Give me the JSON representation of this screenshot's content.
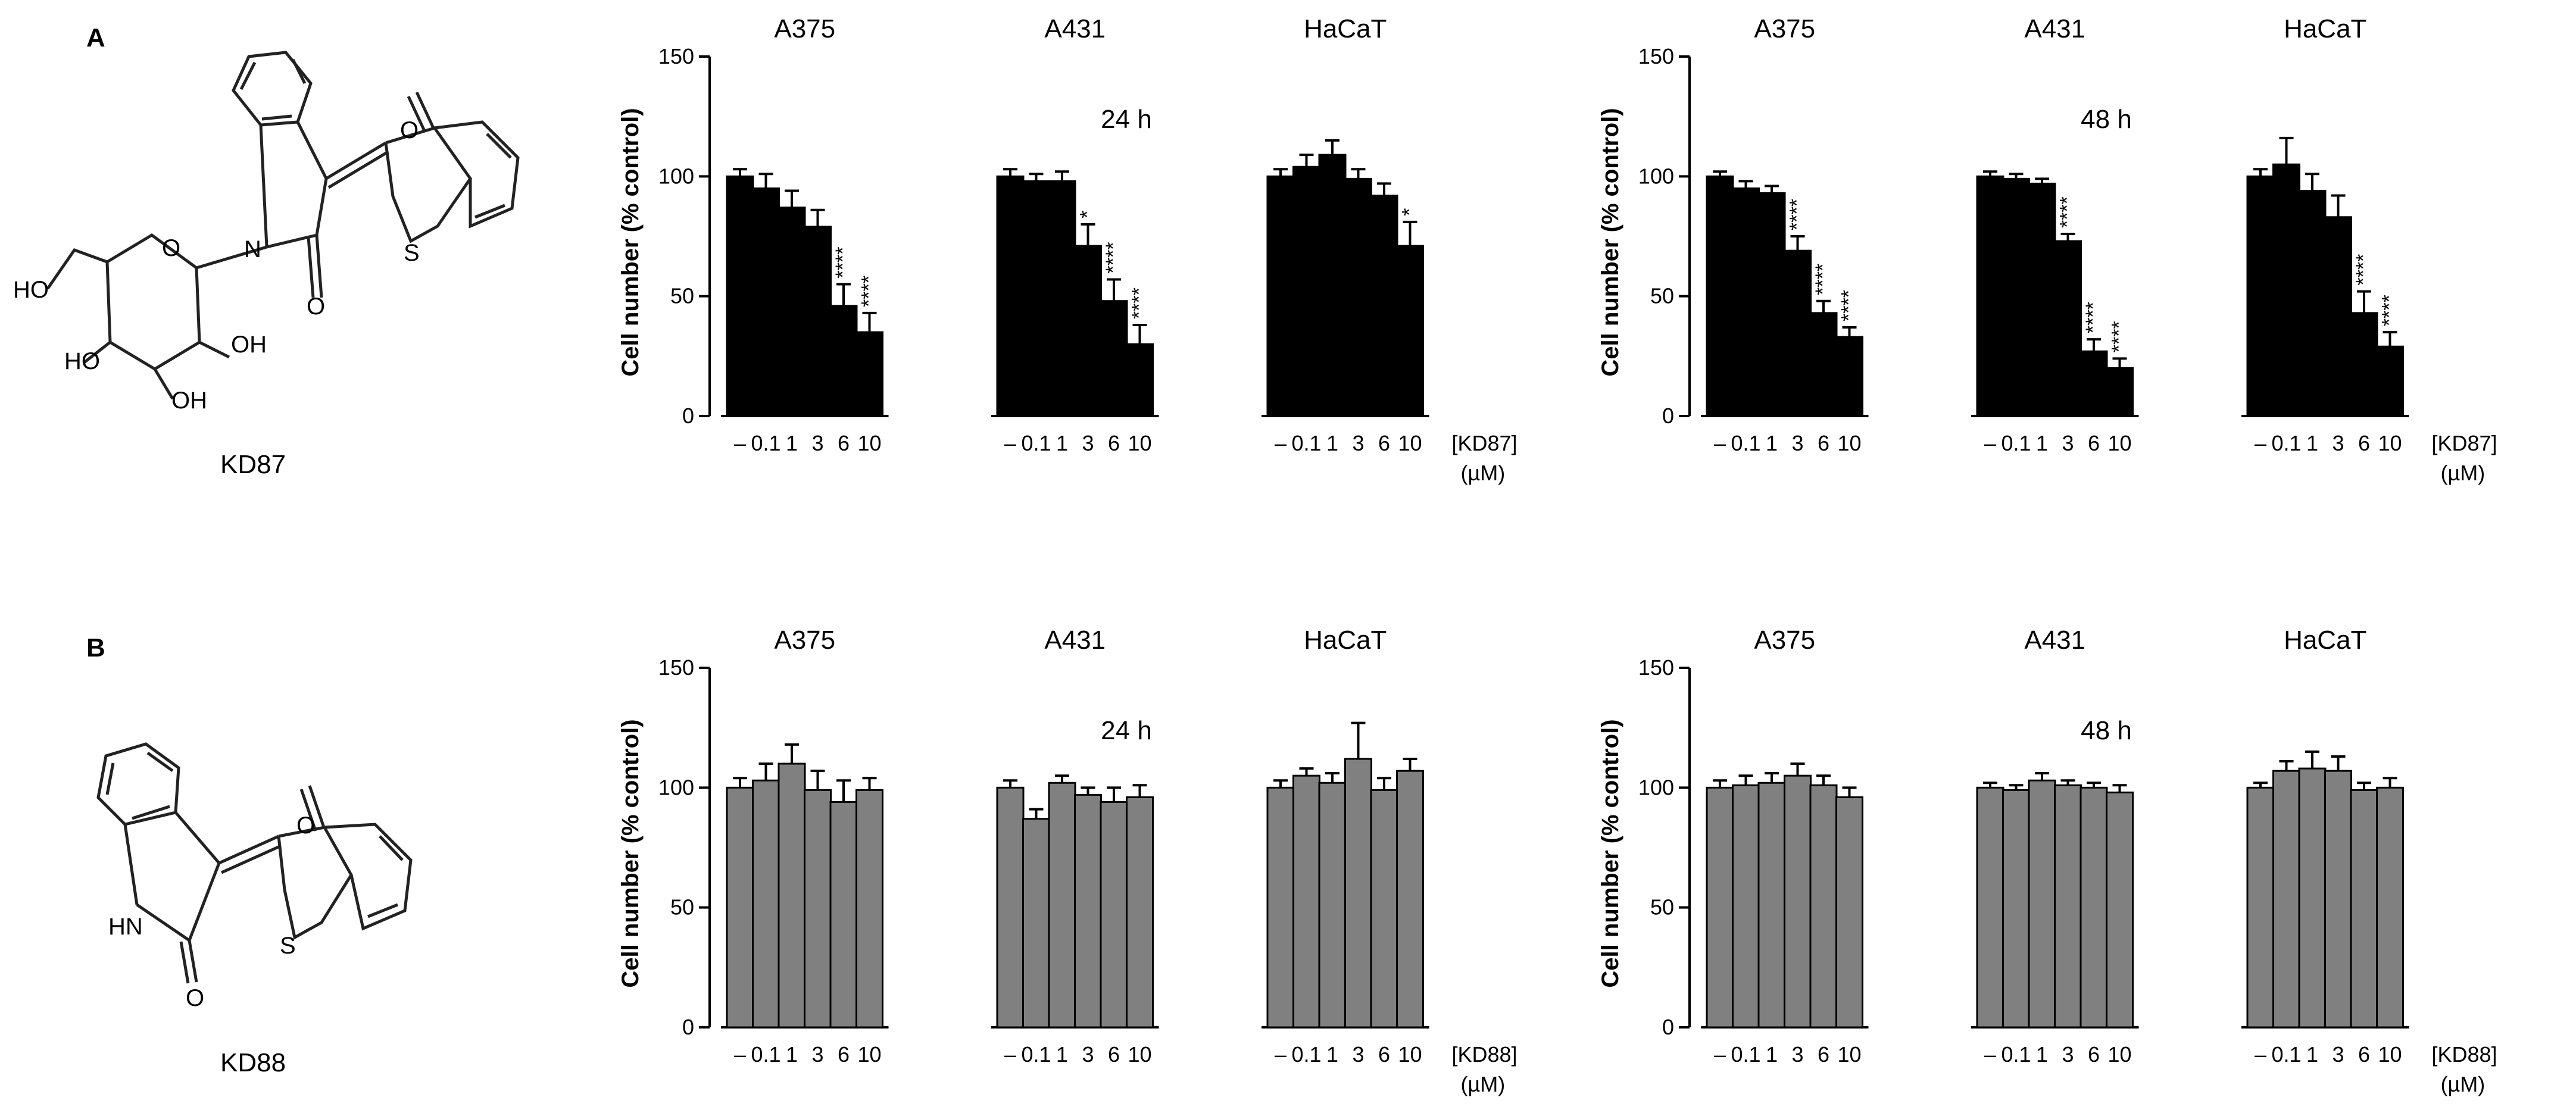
{
  "panels": [
    {
      "letter": "A",
      "compound": "KD87"
    },
    {
      "letter": "B",
      "compound": "KD88"
    }
  ],
  "atoms": {
    "kd87": {
      "ho": "HO",
      "ho2": "HO",
      "oh": "OH",
      "oh2": "OH",
      "o_ring": "O",
      "n": "N",
      "o_carbonyl": "O",
      "o_top": "O",
      "s": "S"
    },
    "kd88": {
      "hn": "HN",
      "o_carbonyl": "O",
      "o_top": "O",
      "s": "S"
    }
  },
  "colors": {
    "kd87_bar": "#000000",
    "kd88_bar": "#808080",
    "edge": "#000000"
  },
  "chart_data": [
    {
      "type": "bar",
      "id": "A-24h",
      "time": "24 h",
      "ylabel": "Cell number (% control)",
      "ylim": [
        0,
        150
      ],
      "yticks": [
        0,
        50,
        100,
        150
      ],
      "groups": [
        "A375",
        "A431",
        "HaCaT"
      ],
      "categories": [
        "–",
        "0.1",
        "1",
        "3",
        "6",
        "10"
      ],
      "compound_label": "[KD87]",
      "unit_label": "(µM)",
      "series": [
        {
          "name": "A375",
          "values": [
            100,
            95,
            87,
            79,
            46,
            35
          ],
          "errors": [
            3,
            6,
            7,
            7,
            9,
            8
          ],
          "sig": [
            "",
            "",
            "",
            "",
            "****",
            "****"
          ]
        },
        {
          "name": "A431",
          "values": [
            100,
            98,
            98,
            71,
            48,
            30
          ],
          "errors": [
            3,
            3,
            4,
            9,
            9,
            8
          ],
          "sig": [
            "",
            "",
            "",
            "*",
            "****",
            "****"
          ]
        },
        {
          "name": "HaCaT",
          "values": [
            100,
            104,
            109,
            99,
            92,
            71
          ],
          "errors": [
            3,
            5,
            6,
            4,
            5,
            10
          ],
          "sig": [
            "",
            "",
            "",
            "",
            "",
            "*"
          ]
        }
      ]
    },
    {
      "type": "bar",
      "id": "A-48h",
      "time": "48 h",
      "ylabel": "Cell number (% control)",
      "ylim": [
        0,
        150
      ],
      "yticks": [
        0,
        50,
        100,
        150
      ],
      "groups": [
        "A375",
        "A431",
        "HaCaT"
      ],
      "categories": [
        "–",
        "0.1",
        "1",
        "3",
        "6",
        "10"
      ],
      "compound_label": "[KD87]",
      "unit_label": "(µM)",
      "series": [
        {
          "name": "A375",
          "values": [
            100,
            95,
            93,
            69,
            43,
            33
          ],
          "errors": [
            2,
            3,
            3,
            6,
            5,
            4
          ],
          "sig": [
            "",
            "",
            "",
            "****",
            "****",
            "****"
          ]
        },
        {
          "name": "A431",
          "values": [
            100,
            99,
            97,
            73,
            27,
            20
          ],
          "errors": [
            2,
            2,
            2,
            3,
            5,
            4
          ],
          "sig": [
            "",
            "",
            "",
            "****",
            "****",
            "****"
          ]
        },
        {
          "name": "HaCaT",
          "values": [
            100,
            105,
            94,
            83,
            43,
            29
          ],
          "errors": [
            3,
            11,
            7,
            9,
            9,
            6
          ],
          "sig": [
            "",
            "",
            "",
            "",
            "****",
            "****"
          ]
        }
      ]
    },
    {
      "type": "bar",
      "id": "B-24h",
      "time": "24 h",
      "ylabel": "Cell number (% control)",
      "ylim": [
        0,
        150
      ],
      "yticks": [
        0,
        50,
        100,
        150
      ],
      "groups": [
        "A375",
        "A431",
        "HaCaT"
      ],
      "categories": [
        "–",
        "0.1",
        "1",
        "3",
        "6",
        "10"
      ],
      "compound_label": "[KD88]",
      "unit_label": "(µM)",
      "series": [
        {
          "name": "A375",
          "values": [
            100,
            103,
            110,
            99,
            94,
            99
          ],
          "errors": [
            4,
            7,
            8,
            8,
            9,
            5
          ],
          "sig": [
            "",
            "",
            "",
            "",
            "",
            ""
          ]
        },
        {
          "name": "A431",
          "values": [
            100,
            87,
            102,
            97,
            94,
            96
          ],
          "errors": [
            3,
            4,
            3,
            3,
            6,
            5
          ],
          "sig": [
            "",
            "",
            "",
            "",
            "",
            ""
          ]
        },
        {
          "name": "HaCaT",
          "values": [
            100,
            105,
            102,
            112,
            99,
            107
          ],
          "errors": [
            3,
            3,
            4,
            15,
            5,
            5
          ],
          "sig": [
            "",
            "",
            "",
            "",
            "",
            ""
          ]
        }
      ]
    },
    {
      "type": "bar",
      "id": "B-48h",
      "time": "48 h",
      "ylabel": "Cell number (% control)",
      "ylim": [
        0,
        150
      ],
      "yticks": [
        0,
        50,
        100,
        150
      ],
      "groups": [
        "A375",
        "A431",
        "HaCaT"
      ],
      "categories": [
        "–",
        "0.1",
        "1",
        "3",
        "6",
        "10"
      ],
      "compound_label": "[KD88]",
      "unit_label": "(µM)",
      "series": [
        {
          "name": "A375",
          "values": [
            100,
            101,
            102,
            105,
            101,
            96
          ],
          "errors": [
            3,
            4,
            4,
            5,
            4,
            4
          ],
          "sig": [
            "",
            "",
            "",
            "",
            "",
            ""
          ]
        },
        {
          "name": "A431",
          "values": [
            100,
            99,
            103,
            101,
            100,
            98
          ],
          "errors": [
            2,
            2,
            3,
            2,
            2,
            3
          ],
          "sig": [
            "",
            "",
            "",
            "",
            "",
            ""
          ]
        },
        {
          "name": "HaCaT",
          "values": [
            100,
            107,
            108,
            107,
            99,
            100
          ],
          "errors": [
            2,
            4,
            7,
            6,
            3,
            4
          ],
          "sig": [
            "",
            "",
            "",
            "",
            "",
            ""
          ]
        }
      ]
    }
  ]
}
